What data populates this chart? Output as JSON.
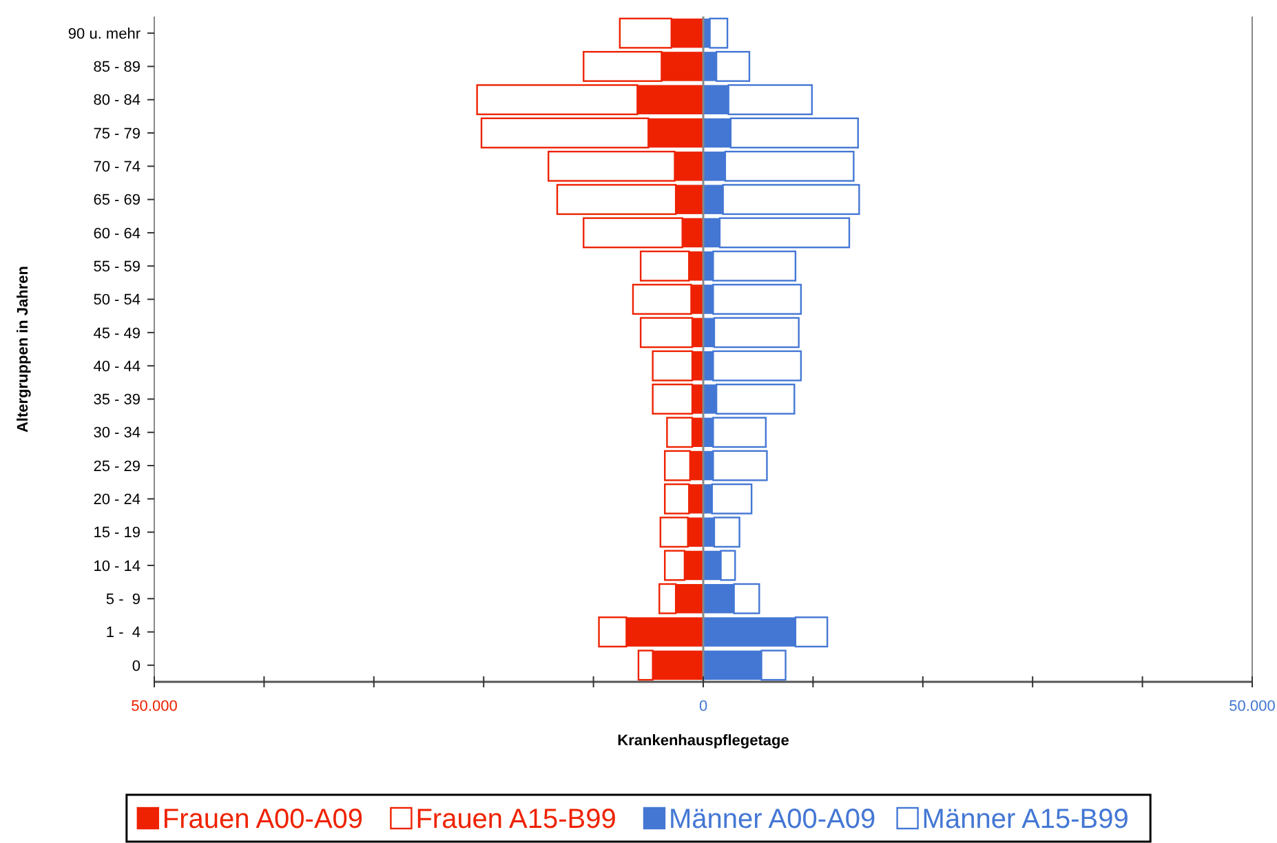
{
  "chart_data": {
    "type": "bar",
    "orientation": "horizontal",
    "stacked": true,
    "xlabel": "Krankenhauspflegetage",
    "ylabel": "Altergruppen in Jahren",
    "categories": [
      "90 u. mehr",
      "85 - 89",
      "80 - 84",
      "75 - 79",
      "70 - 74",
      "65 - 69",
      "60 - 64",
      "55 - 59",
      "50 - 54",
      "45 - 49",
      "40 - 44",
      "35 - 39",
      "30 - 34",
      "25 - 29",
      "20 - 24",
      "15 - 19",
      "10 - 14",
      "5 -  9",
      "1 -  4",
      "0"
    ],
    "series": [
      {
        "name": "Frauen A00-A09",
        "color": "#ee2200",
        "values": [
          -2900,
          -3800,
          -6000,
          -5000,
          -2600,
          -2500,
          -1900,
          -1300,
          -1100,
          -1000,
          -1000,
          -1000,
          -1000,
          -1200,
          -1300,
          -1400,
          -1700,
          -2500,
          -7000,
          -4600
        ]
      },
      {
        "name": "Frauen A15-B99",
        "color": "#ffffff",
        "values": [
          -4700,
          -7100,
          -14600,
          -15200,
          -11500,
          -10800,
          -9000,
          -4400,
          -5300,
          -4700,
          -3600,
          -3600,
          -2300,
          -2300,
          -2200,
          -2500,
          -1800,
          -1500,
          -2500,
          -1300
        ]
      },
      {
        "name": "Männer A00-A09",
        "color": "#4477d4",
        "values": [
          600,
          1200,
          2300,
          2500,
          2000,
          1800,
          1500,
          900,
          900,
          1000,
          900,
          1200,
          900,
          900,
          800,
          1000,
          1600,
          2800,
          8400,
          5300
        ]
      },
      {
        "name": "Männer A15-B99",
        "color": "#ffffff",
        "values": [
          1600,
          3000,
          7600,
          11600,
          11700,
          12400,
          11800,
          7500,
          8000,
          7700,
          8000,
          7100,
          4800,
          4900,
          3600,
          2300,
          1300,
          2300,
          2900,
          2200
        ]
      }
    ],
    "xlim": [
      -50000,
      50000
    ],
    "xticks": [
      {
        "value": -50000,
        "label": "50.000"
      },
      {
        "value": -40000,
        "label": null
      },
      {
        "value": -30000,
        "label": null
      },
      {
        "value": -20000,
        "label": null
      },
      {
        "value": -10000,
        "label": null
      },
      0,
      {
        "value": 10000,
        "label": null
      },
      {
        "value": 20000,
        "label": null
      },
      {
        "value": 30000,
        "label": null
      },
      {
        "value": 40000,
        "label": null
      },
      {
        "value": 50000,
        "label": "50.000"
      }
    ],
    "legend": "bottom"
  }
}
